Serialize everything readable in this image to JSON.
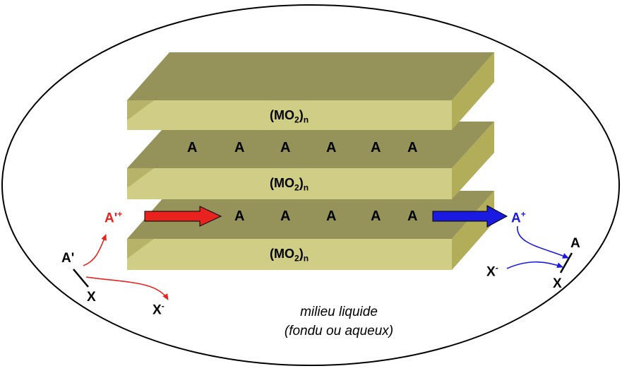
{
  "diagram": {
    "layer_formula": "(MO",
    "layer_sub_2": "2",
    "layer_close": ")",
    "layer_sub_n": "n",
    "interlayer_atom": "A",
    "incoming": {
      "ion_base": "A'",
      "ion_charge": "+",
      "reagent_A": "A'",
      "reagent_X": "X",
      "anion_base": "X",
      "anion_charge": "-"
    },
    "outgoing": {
      "ion_base": "A",
      "ion_charge": "+",
      "anion_base": "X",
      "anion_charge": "-",
      "product_A": "A",
      "product_X": "X"
    },
    "medium_line1": "milieu liquide",
    "medium_line2": "(fondu ou aqueux)",
    "colors": {
      "slab_top": "#95935a",
      "slab_front": "#d0cd86",
      "slab_side": "#b1ad58",
      "incoming": "#e8221e",
      "outgoing": "#1a1ae0",
      "outline": "#000000"
    }
  }
}
